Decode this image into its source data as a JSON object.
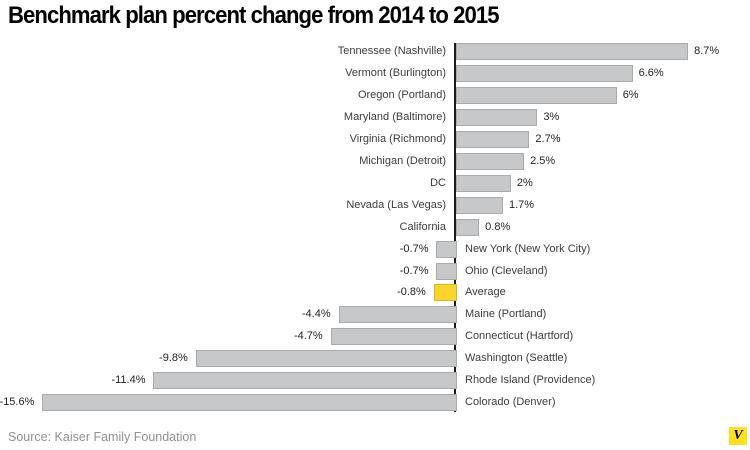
{
  "title": "Benchmark plan percent change from 2014 to 2015",
  "source": "Source: Kaiser Family Foundation",
  "logo": {
    "letter": "V",
    "bg": "#ffdf1f"
  },
  "colors": {
    "bar": "#c6c8ca",
    "bar_border": "#a9abad",
    "highlight": "#fbd42c",
    "highlight_border": "#d9b625",
    "axis": "#1a1a1a"
  },
  "chart_data": {
    "type": "bar",
    "orientation": "horizontal",
    "title": "Benchmark plan percent change from 2014 to 2015",
    "xlabel": "",
    "ylabel": "",
    "unit": "%",
    "xlim": [
      -15.6,
      8.7
    ],
    "grid": false,
    "legend": false,
    "baseline": 0,
    "highlight_category": "Average",
    "categories": [
      "Tennessee (Nashville)",
      "Vermont (Burlington)",
      "Oregon (Portland)",
      "Maryland (Baltimore)",
      "Virginia (Richmond)",
      "Michigan (Detroit)",
      "DC",
      "Nevada (Las Vegas)",
      "California",
      "New York (New York City)",
      "Ohio (Cleveland)",
      "Average",
      "Maine (Portland)",
      "Connecticut (Hartford)",
      "Washington (Seattle)",
      "Rhode Island (Providence)",
      "Colorado (Denver)"
    ],
    "values": [
      8.7,
      6.6,
      6,
      3,
      2.7,
      2.5,
      2,
      1.7,
      0.8,
      -0.7,
      -0.7,
      -0.8,
      -4.4,
      -4.7,
      -9.8,
      -11.4,
      -15.6
    ],
    "value_labels": [
      "8.7%",
      "6.6%",
      "6%",
      "3%",
      "2.7%",
      "2.5%",
      "2%",
      "1.7%",
      "0.8%",
      "-0.7%",
      "-0.7%",
      "-0.8%",
      "-4.4%",
      "-4.7%",
      "-9.8%",
      "-11.4%",
      "-15.6%"
    ]
  }
}
